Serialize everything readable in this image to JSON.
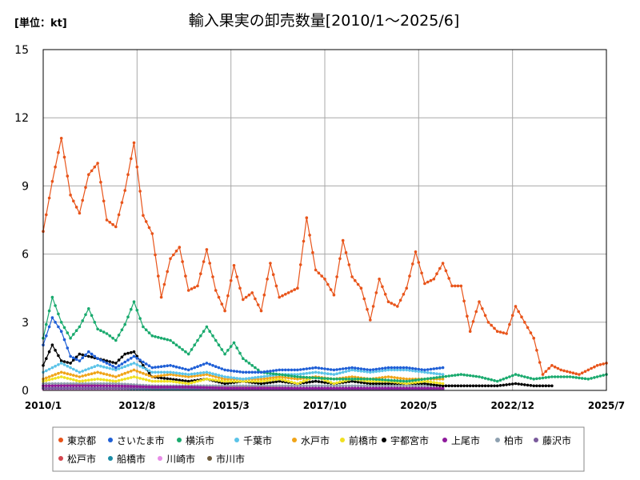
{
  "chart_data": {
    "type": "line",
    "title": "輸入果実の卸売数量[2010/1～2025/6]",
    "unit_label": "[単位：kt]",
    "ylim": [
      0,
      15
    ],
    "y_ticks": [
      0,
      3,
      6,
      9,
      12,
      15
    ],
    "y_tick_labels": [
      "0",
      "3",
      "6",
      "9",
      "12",
      "15"
    ],
    "x_tick_labels": [
      "2010/1",
      "2012/8",
      "2015/3",
      "2017/10",
      "2020/5",
      "2022/12",
      "2025/7"
    ],
    "x_ticks": [
      2010.0,
      2012.583,
      2015.167,
      2017.75,
      2020.333,
      2022.917,
      2025.5
    ],
    "xlim": [
      2010.0,
      2025.5
    ],
    "grid": true,
    "legend_placement": "bottom",
    "series": [
      {
        "name": "東京都",
        "color": "#e8541a",
        "end": 2025.5,
        "x": [
          2010.0,
          2010.25,
          2010.5,
          2010.75,
          2011.0,
          2011.25,
          2011.5,
          2011.75,
          2012.0,
          2012.25,
          2012.5,
          2012.75,
          2013.0,
          2013.25,
          2013.5,
          2013.75,
          2014.0,
          2014.25,
          2014.5,
          2014.75,
          2015.0,
          2015.25,
          2015.5,
          2015.75,
          2016.0,
          2016.25,
          2016.5,
          2016.75,
          2017.0,
          2017.25,
          2017.5,
          2017.75,
          2018.0,
          2018.25,
          2018.5,
          2018.75,
          2019.0,
          2019.25,
          2019.5,
          2019.75,
          2020.0,
          2020.25,
          2020.5,
          2020.75,
          2021.0,
          2021.25,
          2021.5,
          2021.75,
          2022.0,
          2022.25,
          2022.5,
          2022.75,
          2023.0,
          2023.25,
          2023.5,
          2023.75,
          2024.0,
          2024.25,
          2024.5,
          2024.75,
          2025.0,
          2025.25,
          2025.5
        ],
        "values": [
          7.0,
          9.2,
          11.1,
          8.6,
          7.8,
          9.5,
          10.0,
          7.5,
          7.2,
          8.8,
          10.9,
          7.7,
          6.9,
          4.1,
          5.8,
          6.3,
          4.4,
          4.6,
          6.2,
          4.4,
          3.5,
          5.5,
          4.0,
          4.3,
          3.5,
          5.6,
          4.1,
          4.3,
          4.5,
          7.6,
          5.3,
          4.9,
          4.2,
          6.6,
          5.0,
          4.5,
          3.1,
          4.9,
          3.9,
          3.7,
          4.5,
          6.1,
          4.7,
          4.9,
          5.6,
          4.6,
          4.6,
          2.6,
          3.9,
          3.0,
          2.6,
          2.5,
          3.7,
          3.0,
          2.3,
          0.7,
          1.1,
          0.9,
          0.8,
          0.7,
          0.9,
          1.1,
          1.2
        ]
      },
      {
        "name": "さいたま市",
        "color": "#1f5fd6",
        "end": 2021.0,
        "x": [
          2010.0,
          2010.25,
          2010.5,
          2010.75,
          2011.0,
          2011.25,
          2011.5,
          2011.75,
          2012.0,
          2012.5,
          2013.0,
          2013.5,
          2014.0,
          2014.5,
          2015.0,
          2015.5,
          2016.0,
          2016.5,
          2017.0,
          2017.5,
          2018.0,
          2018.5,
          2019.0,
          2019.5,
          2020.0,
          2020.5,
          2021.0
        ],
        "values": [
          2.0,
          3.2,
          2.6,
          1.5,
          1.3,
          1.7,
          1.4,
          1.2,
          1.0,
          1.5,
          1.0,
          1.1,
          0.9,
          1.2,
          0.9,
          0.8,
          0.8,
          0.9,
          0.9,
          1.0,
          0.9,
          1.0,
          0.9,
          1.0,
          1.0,
          0.9,
          1.0
        ]
      },
      {
        "name": "横浜市",
        "color": "#1aaa6e",
        "end": 2025.5,
        "x": [
          2010.0,
          2010.25,
          2010.5,
          2010.75,
          2011.0,
          2011.25,
          2011.5,
          2011.75,
          2012.0,
          2012.25,
          2012.5,
          2012.75,
          2013.0,
          2013.5,
          2014.0,
          2014.5,
          2015.0,
          2015.25,
          2015.5,
          2016.0,
          2017.0,
          2018.0,
          2019.0,
          2020.0,
          2021.0,
          2021.5,
          2022.0,
          2022.5,
          2023.0,
          2023.5,
          2024.0,
          2024.5,
          2025.0,
          2025.5
        ],
        "values": [
          2.3,
          4.1,
          3.0,
          2.3,
          2.8,
          3.6,
          2.7,
          2.5,
          2.2,
          2.9,
          3.9,
          2.8,
          2.4,
          2.2,
          1.6,
          2.8,
          1.6,
          2.1,
          1.4,
          0.8,
          0.6,
          0.5,
          0.5,
          0.4,
          0.6,
          0.7,
          0.6,
          0.4,
          0.7,
          0.5,
          0.6,
          0.6,
          0.5,
          0.7
        ]
      },
      {
        "name": "千葉市",
        "color": "#5bc3e8",
        "end": 2021.0,
        "x": [
          2010.0,
          2010.5,
          2011.0,
          2011.5,
          2012.0,
          2012.5,
          2013.0,
          2013.5,
          2014.0,
          2014.5,
          2015.0,
          2015.5,
          2016.0,
          2016.5,
          2017.0,
          2017.5,
          2018.0,
          2018.5,
          2019.0,
          2019.5,
          2020.0,
          2020.5,
          2021.0
        ],
        "values": [
          0.8,
          1.2,
          0.8,
          1.1,
          0.9,
          1.2,
          0.8,
          0.8,
          0.7,
          0.8,
          0.6,
          0.5,
          0.6,
          0.7,
          0.7,
          0.8,
          0.7,
          0.9,
          0.8,
          0.9,
          0.9,
          0.8,
          0.7
        ]
      },
      {
        "name": "水戸市",
        "color": "#f0a418",
        "end": 2021.0,
        "x": [
          2010.0,
          2010.5,
          2011.0,
          2011.5,
          2012.0,
          2012.5,
          2013.0,
          2013.5,
          2014.0,
          2014.5,
          2015.0,
          2015.5,
          2016.0,
          2016.5,
          2017.0,
          2017.5,
          2018.0,
          2018.5,
          2019.0,
          2019.5,
          2020.0,
          2020.5,
          2021.0
        ],
        "values": [
          0.5,
          0.8,
          0.6,
          0.8,
          0.6,
          0.9,
          0.6,
          0.7,
          0.6,
          0.7,
          0.5,
          0.5,
          0.5,
          0.6,
          0.5,
          0.6,
          0.5,
          0.6,
          0.5,
          0.6,
          0.5,
          0.5,
          0.5
        ]
      },
      {
        "name": "前橋市",
        "color": "#f0e020",
        "end": 2021.0,
        "x": [
          2010.0,
          2010.5,
          2011.0,
          2011.5,
          2012.0,
          2012.5,
          2013.0,
          2013.5,
          2014.0,
          2014.5,
          2015.0,
          2015.5,
          2016.0,
          2016.5,
          2017.0,
          2017.5,
          2018.0,
          2018.5,
          2019.0,
          2019.5,
          2020.0,
          2020.5,
          2021.0
        ],
        "values": [
          0.4,
          0.6,
          0.4,
          0.5,
          0.4,
          0.6,
          0.4,
          0.4,
          0.3,
          0.5,
          0.4,
          0.4,
          0.4,
          0.5,
          0.3,
          0.6,
          0.3,
          0.5,
          0.4,
          0.4,
          0.3,
          0.4,
          0.3
        ]
      },
      {
        "name": "宇都宮市",
        "color": "#000000",
        "end": 2024.0,
        "x": [
          2010.0,
          2010.25,
          2010.5,
          2010.75,
          2011.0,
          2011.5,
          2012.0,
          2012.25,
          2012.5,
          2012.75,
          2013.0,
          2013.5,
          2014.0,
          2014.5,
          2015.0,
          2015.5,
          2016.0,
          2016.5,
          2017.0,
          2017.5,
          2018.0,
          2018.5,
          2019.0,
          2019.5,
          2020.0,
          2020.5,
          2021.0,
          2021.5,
          2022.0,
          2022.5,
          2023.0,
          2023.5,
          2024.0
        ],
        "values": [
          1.1,
          2.0,
          1.3,
          1.2,
          1.6,
          1.4,
          1.2,
          1.6,
          1.7,
          1.1,
          0.6,
          0.5,
          0.4,
          0.5,
          0.3,
          0.4,
          0.3,
          0.4,
          0.3,
          0.4,
          0.3,
          0.4,
          0.3,
          0.3,
          0.3,
          0.3,
          0.2,
          0.2,
          0.2,
          0.2,
          0.3,
          0.2,
          0.2
        ]
      },
      {
        "name": "上尾市",
        "color": "#8e1a9c",
        "end": 2021.0,
        "x": [
          2010.0,
          2011.0,
          2012.0,
          2013.0,
          2014.0,
          2015.0,
          2016.0,
          2017.0,
          2018.0,
          2019.0,
          2020.0,
          2021.0
        ],
        "values": [
          0.2,
          0.2,
          0.2,
          0.15,
          0.15,
          0.1,
          0.1,
          0.1,
          0.1,
          0.1,
          0.1,
          0.1
        ]
      },
      {
        "name": "柏市",
        "color": "#8ea0b0",
        "end": 2021.0,
        "x": [
          2010.0,
          2011.0,
          2012.0,
          2013.0,
          2014.0,
          2015.0,
          2016.0,
          2017.0,
          2018.0,
          2019.0,
          2020.0,
          2021.0
        ],
        "values": [
          0.3,
          0.3,
          0.3,
          0.2,
          0.2,
          0.2,
          0.2,
          0.2,
          0.2,
          0.2,
          0.2,
          0.2
        ]
      },
      {
        "name": "藤沢市",
        "color": "#7a5a9c",
        "end": 2021.0,
        "x": [
          2010.0,
          2011.0,
          2012.0,
          2013.0,
          2014.0,
          2015.0,
          2016.0,
          2017.0,
          2018.0,
          2019.0,
          2020.0,
          2021.0
        ],
        "values": [
          0.1,
          0.1,
          0.1,
          0.1,
          0.1,
          0.05,
          0.05,
          0.05,
          0.05,
          0.05,
          0.05,
          0.05
        ]
      },
      {
        "name": "松戸市",
        "color": "#d4464f",
        "end": 2021.0,
        "x": [
          2010.0,
          2011.0,
          2012.0,
          2013.0,
          2014.0,
          2015.0,
          2016.0,
          2017.0,
          2018.0,
          2019.0,
          2020.0,
          2021.0
        ],
        "values": [
          0.2,
          0.25,
          0.2,
          0.2,
          0.15,
          0.15,
          0.15,
          0.1,
          0.1,
          0.1,
          0.1,
          0.1
        ]
      },
      {
        "name": "船橋市",
        "color": "#1a8ca6",
        "end": 2021.0,
        "x": [
          2010.0,
          2011.0,
          2012.0,
          2013.0,
          2014.0,
          2015.0,
          2016.0,
          2017.0,
          2018.0,
          2019.0,
          2020.0,
          2021.0
        ],
        "values": [
          0.1,
          0.1,
          0.1,
          0.05,
          0.05,
          0.05,
          0.05,
          0.05,
          0.05,
          0.05,
          0.05,
          0.05
        ]
      },
      {
        "name": "川崎市",
        "color": "#e88ce8",
        "end": 2021.0,
        "x": [
          2010.0,
          2011.0,
          2012.0,
          2013.0,
          2014.0,
          2015.0,
          2016.0,
          2017.0,
          2018.0,
          2019.0,
          2020.0,
          2021.0
        ],
        "values": [
          0.05,
          0.05,
          0.05,
          0.05,
          0.05,
          0.05,
          0.05,
          0.05,
          0.05,
          0.05,
          0.05,
          0.05
        ]
      },
      {
        "name": "市川市",
        "color": "#6e5a3c",
        "end": 2021.0,
        "x": [
          2010.0,
          2011.0,
          2012.0,
          2013.0,
          2014.0,
          2015.0,
          2016.0,
          2017.0,
          2018.0,
          2019.0,
          2020.0,
          2021.0
        ],
        "values": [
          0.1,
          0.1,
          0.1,
          0.1,
          0.05,
          0.05,
          0.05,
          0.05,
          0.05,
          0.05,
          0.05,
          0.05
        ]
      }
    ]
  }
}
